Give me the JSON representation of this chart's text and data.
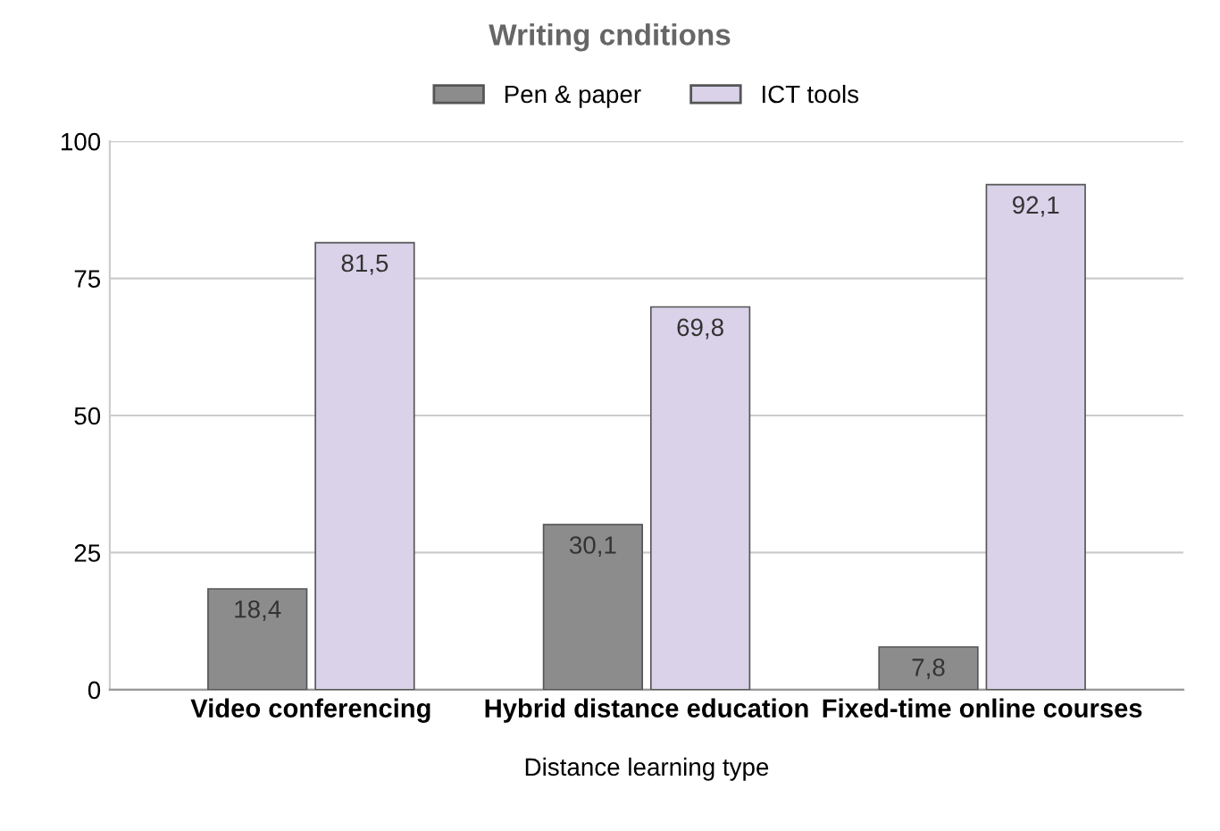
{
  "chart_data": {
    "type": "bar",
    "title": "Writing cnditions",
    "xlabel": "Distance learning type",
    "categories": [
      "Video conferencing",
      "Hybrid distance education",
      "Fixed-time online courses"
    ],
    "series": [
      {
        "name": "Pen & paper",
        "color": "#8c8c8c",
        "values": [
          18.4,
          30.1,
          7.8
        ],
        "value_labels": [
          "18,4",
          "30,1",
          "7,8"
        ]
      },
      {
        "name": "ICT tools",
        "color": "#d9d2e9",
        "values": [
          81.5,
          69.8,
          92.1
        ],
        "value_labels": [
          "81,5",
          "69,8",
          "92,1"
        ]
      }
    ],
    "ylim": [
      0,
      100
    ],
    "yticks": [
      0,
      25,
      50,
      75,
      100
    ],
    "grid": "y",
    "legend": "top"
  }
}
